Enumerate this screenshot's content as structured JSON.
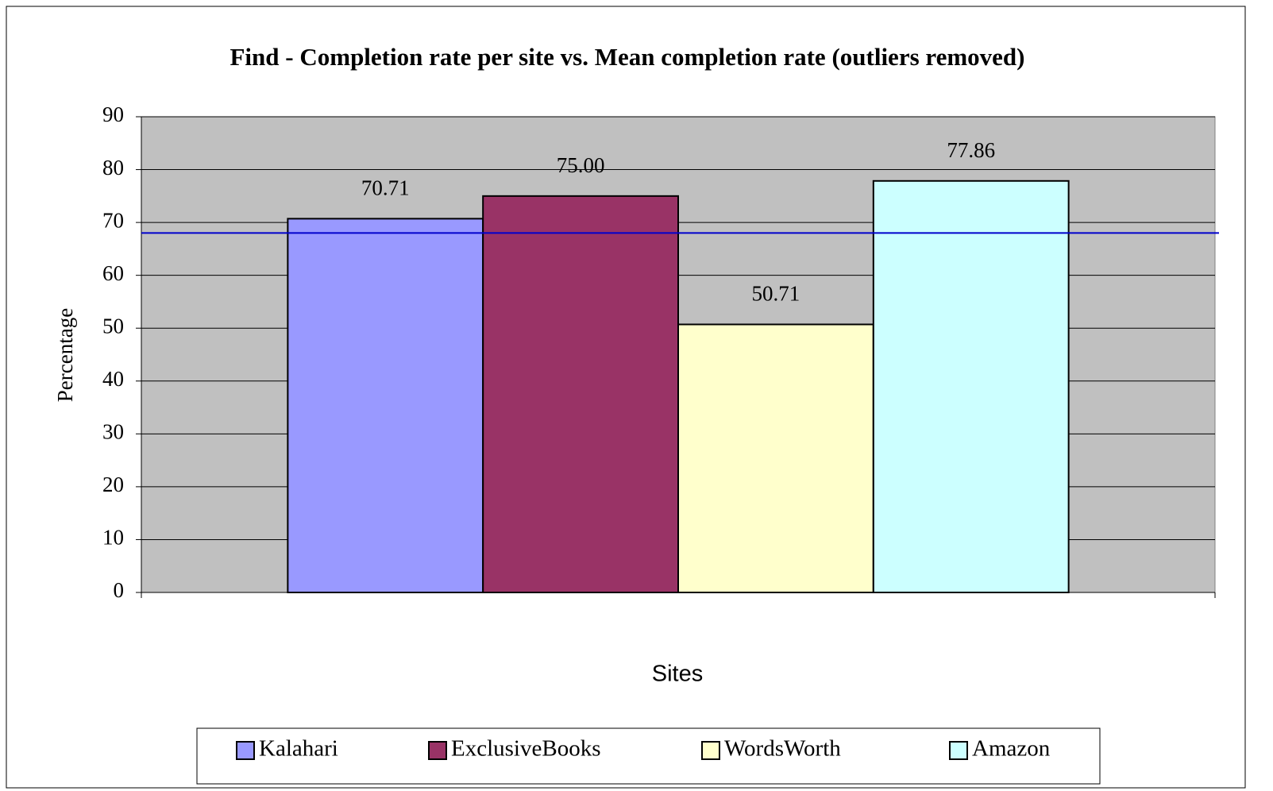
{
  "chart_data": {
    "type": "bar",
    "title": "Find - Completion rate per site vs. Mean completion rate (outliers removed)",
    "x_label": "Sites",
    "y_label": "Percentage",
    "categories": [
      null
    ],
    "series": [
      {
        "name": "Kalahari",
        "color": "#9999ff",
        "values": [
          70.71
        ],
        "value_labels": [
          "70.71"
        ]
      },
      {
        "name": "ExclusiveBooks",
        "color": "#993366",
        "values": [
          75
        ],
        "value_labels": [
          "75.00"
        ]
      },
      {
        "name": "WordsWorth",
        "color": "#ffffcc",
        "values": [
          50.71
        ],
        "value_labels": [
          "50.71"
        ]
      },
      {
        "name": "Amazon",
        "color": "#ccffff",
        "values": [
          77.86
        ],
        "value_labels": [
          "77.86"
        ]
      }
    ],
    "reference_line": {
      "value": 68,
      "color": "#0000cc"
    },
    "ylim": [
      0,
      90
    ],
    "yticks": [
      0,
      10,
      20,
      30,
      40,
      50,
      60,
      70,
      80,
      90
    ],
    "grid": true,
    "plot_background": "#c0c0c0",
    "legend": "bottom"
  }
}
